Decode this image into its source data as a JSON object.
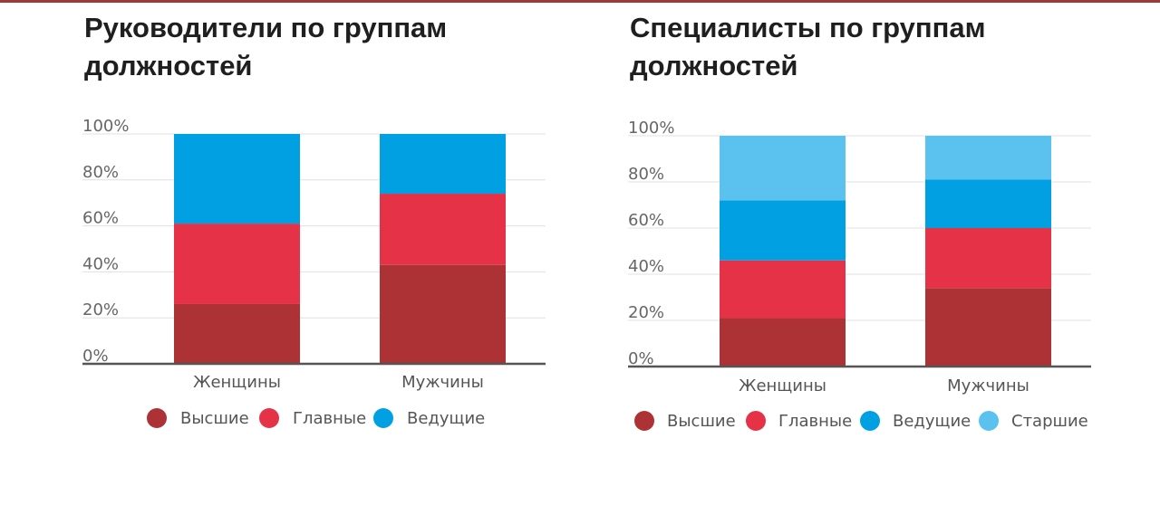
{
  "chart_data": [
    {
      "type": "bar",
      "stacked": true,
      "title": "Руководители по группам должностей",
      "categories": [
        "Женщины",
        "Мужчины"
      ],
      "y_ticks": [
        "0%",
        "20%",
        "40%",
        "60%",
        "80%",
        "100%"
      ],
      "ylim": [
        0,
        100
      ],
      "grid": true,
      "legend_position": "bottom",
      "series": [
        {
          "name": "Высшие",
          "color": "#ad3235",
          "values": [
            26,
            43
          ]
        },
        {
          "name": "Главные",
          "color": "#e63247",
          "values": [
            35,
            31
          ]
        },
        {
          "name": "Ведущие",
          "color": "#00a0e3",
          "values": [
            39,
            26
          ]
        }
      ]
    },
    {
      "type": "bar",
      "stacked": true,
      "title": "Специалисты по группам должностей",
      "categories": [
        "Женщины",
        "Мужчины"
      ],
      "y_ticks": [
        "0%",
        "20%",
        "40%",
        "60%",
        "80%",
        "100%"
      ],
      "ylim": [
        0,
        100
      ],
      "grid": true,
      "legend_position": "bottom",
      "series": [
        {
          "name": "Высшие",
          "color": "#ad3235",
          "values": [
            21,
            34
          ]
        },
        {
          "name": "Главные",
          "color": "#e63247",
          "values": [
            25,
            26
          ]
        },
        {
          "name": "Ведущие",
          "color": "#00a0e3",
          "values": [
            26,
            21
          ]
        },
        {
          "name": "Старшие",
          "color": "#5bc2f0",
          "values": [
            28,
            19
          ]
        }
      ]
    }
  ]
}
